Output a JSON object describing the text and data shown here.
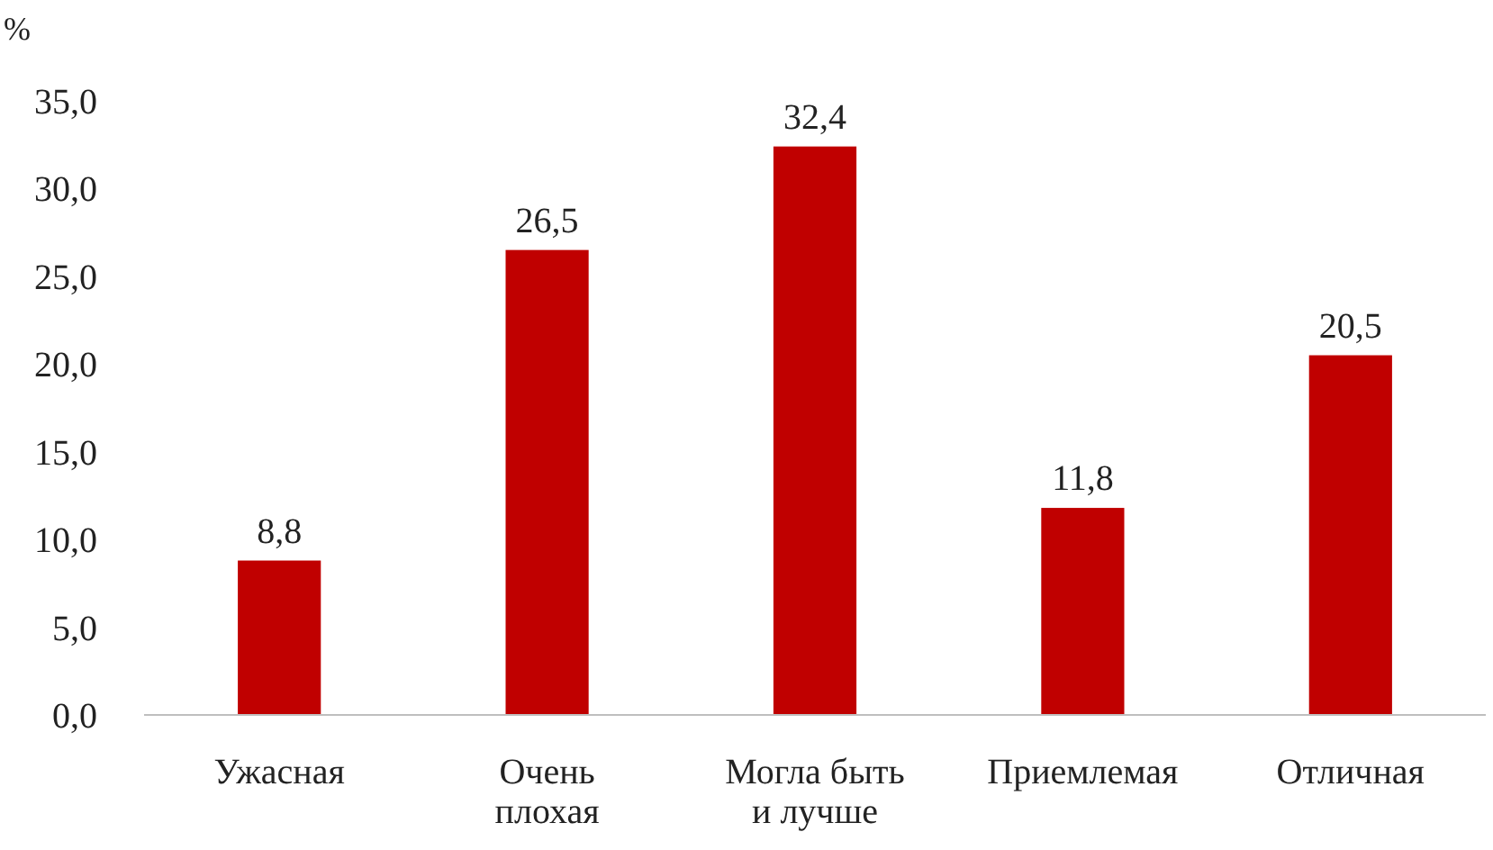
{
  "chart_data": {
    "type": "bar",
    "ylabel": "%",
    "categories": [
      "Ужасная",
      "Очень\nплохая",
      "Могла быть\nи лучше",
      "Приемлемая",
      "Отличная"
    ],
    "values": [
      8.8,
      26.5,
      32.4,
      11.8,
      20.5
    ],
    "value_labels": [
      "8,8",
      "26,5",
      "32,4",
      "11,8",
      "20,5"
    ],
    "color": "#c00000",
    "ylim": [
      0,
      35
    ],
    "yticks": [
      {
        "value": 0,
        "label": "0,0"
      },
      {
        "value": 5,
        "label": "5,0"
      },
      {
        "value": 10,
        "label": "10,0"
      },
      {
        "value": 15,
        "label": "15,0"
      },
      {
        "value": 20,
        "label": "20,0"
      },
      {
        "value": 25,
        "label": "25,0"
      },
      {
        "value": 30,
        "label": "30,0"
      },
      {
        "value": 35,
        "label": "35,0"
      }
    ],
    "grid": false
  }
}
